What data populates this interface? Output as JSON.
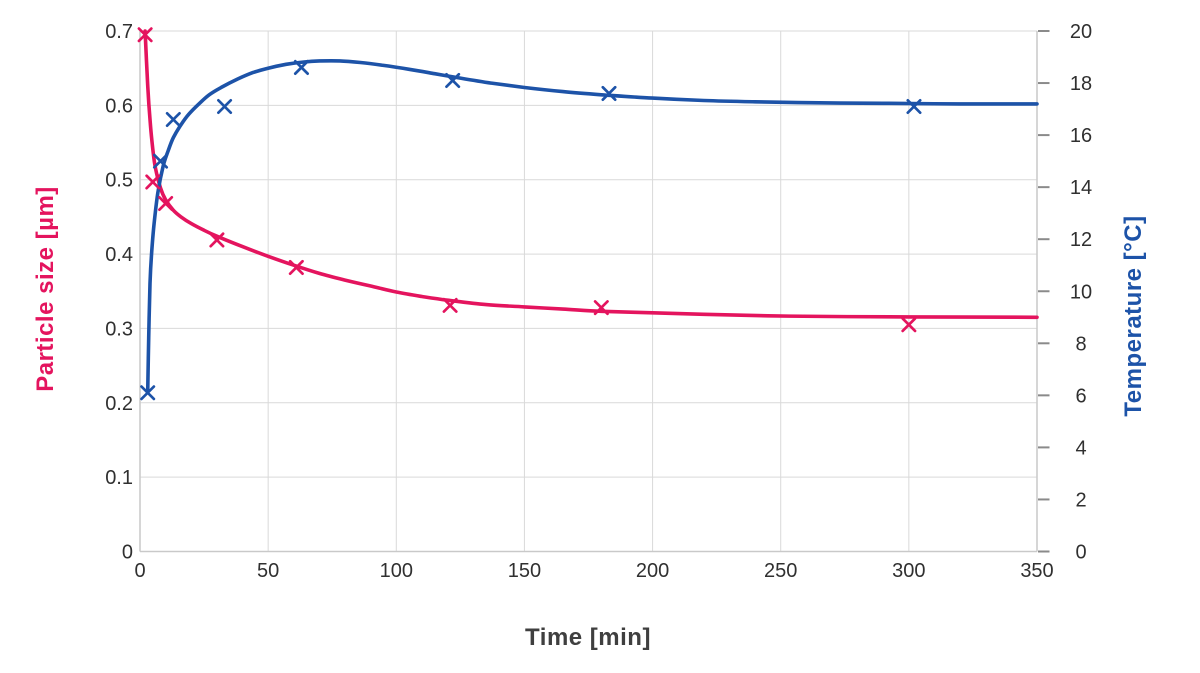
{
  "page": {
    "background": "#ffffff"
  },
  "chart_data": {
    "type": "line",
    "title": "",
    "xlabel": "Time [min]",
    "ylabel_left": "Particle size [µm]",
    "ylabel_right": "Temperature [°C]",
    "x_range": [
      0,
      350
    ],
    "x_tick_labels": [
      "0",
      "50",
      "100",
      "150",
      "200",
      "250",
      "300",
      "350"
    ],
    "x_tick_values": [
      0,
      50,
      100,
      150,
      200,
      250,
      300,
      350
    ],
    "y_left_range": [
      0,
      0.7
    ],
    "y_left_tick_labels": [
      "0.7",
      "0.6",
      "0.5",
      "0.4",
      "0.3",
      "0.2",
      "0.1",
      "0"
    ],
    "y_left_tick_values": [
      0.7,
      0.6,
      0.5,
      0.4,
      0.3,
      0.2,
      0.1,
      0
    ],
    "y_right_range": [
      0,
      20
    ],
    "y_right_tick_labels": [
      "20",
      "18",
      "16",
      "14",
      "12",
      "10",
      "8",
      "6",
      "4",
      "2",
      "0"
    ],
    "y_right_tick_values": [
      20,
      18,
      16,
      14,
      12,
      10,
      8,
      6,
      4,
      2,
      0
    ],
    "grid": true,
    "legend_position": "none",
    "colors": {
      "particle_size": "#E4145E",
      "temperature": "#1D53A8",
      "gridline": "#D9D9D9",
      "axis_line": "#C9C9C9",
      "tick_mark": "#8A8A8A",
      "tick_text": "#303030",
      "xlabel_text": "#3F3F3F"
    },
    "series": [
      {
        "name": "particle_size",
        "label": "Particle size [µm]",
        "axis": "left",
        "color": "#E4145E",
        "marker": "x",
        "points": [
          [
            2,
            0.695
          ],
          [
            5,
            0.497
          ],
          [
            10,
            0.468
          ],
          [
            30,
            0.419
          ],
          [
            61,
            0.382
          ],
          [
            121,
            0.331
          ],
          [
            180,
            0.328
          ],
          [
            300,
            0.305
          ]
        ],
        "trend": [
          [
            2,
            0.7
          ],
          [
            3,
            0.627
          ],
          [
            4,
            0.576
          ],
          [
            5,
            0.541
          ],
          [
            6,
            0.516
          ],
          [
            8,
            0.489
          ],
          [
            10,
            0.473
          ],
          [
            13,
            0.459
          ],
          [
            16,
            0.45
          ],
          [
            20,
            0.441
          ],
          [
            25,
            0.432
          ],
          [
            30,
            0.424
          ],
          [
            40,
            0.41
          ],
          [
            50,
            0.397
          ],
          [
            60,
            0.385
          ],
          [
            70,
            0.374
          ],
          [
            80,
            0.365
          ],
          [
            90,
            0.357
          ],
          [
            100,
            0.349
          ],
          [
            110,
            0.343
          ],
          [
            120,
            0.338
          ],
          [
            135,
            0.332
          ],
          [
            150,
            0.329
          ],
          [
            165,
            0.326
          ],
          [
            180,
            0.323
          ],
          [
            200,
            0.321
          ],
          [
            220,
            0.319
          ],
          [
            245,
            0.317
          ],
          [
            270,
            0.316
          ],
          [
            300,
            0.3155
          ],
          [
            350,
            0.315
          ]
        ]
      },
      {
        "name": "temperature",
        "label": "Temperature [°C]",
        "axis": "right",
        "color": "#1D53A8",
        "marker": "x",
        "points": [
          [
            3,
            6.1
          ],
          [
            8,
            15.0
          ],
          [
            13,
            16.6
          ],
          [
            33,
            17.1
          ],
          [
            63,
            18.6
          ],
          [
            122,
            18.1
          ],
          [
            183,
            17.6
          ],
          [
            302,
            17.1
          ]
        ],
        "trend": [
          [
            3,
            6.1
          ],
          [
            3.4,
            8.2
          ],
          [
            3.9,
            10.3
          ],
          [
            4.5,
            11.4
          ],
          [
            5.5,
            12.6
          ],
          [
            7,
            13.8
          ],
          [
            9,
            14.8
          ],
          [
            11,
            15.4
          ],
          [
            13,
            15.9
          ],
          [
            16,
            16.4
          ],
          [
            19,
            16.8
          ],
          [
            23,
            17.2
          ],
          [
            27,
            17.55
          ],
          [
            32,
            17.85
          ],
          [
            38,
            18.15
          ],
          [
            44,
            18.4
          ],
          [
            50,
            18.57
          ],
          [
            57,
            18.72
          ],
          [
            64,
            18.81
          ],
          [
            70,
            18.85
          ],
          [
            78,
            18.85
          ],
          [
            86,
            18.79
          ],
          [
            95,
            18.68
          ],
          [
            105,
            18.53
          ],
          [
            115,
            18.36
          ],
          [
            125,
            18.19
          ],
          [
            137,
            18.0
          ],
          [
            150,
            17.83
          ],
          [
            165,
            17.67
          ],
          [
            180,
            17.55
          ],
          [
            200,
            17.42
          ],
          [
            220,
            17.33
          ],
          [
            240,
            17.28
          ],
          [
            265,
            17.24
          ],
          [
            290,
            17.22
          ],
          [
            320,
            17.2
          ],
          [
            350,
            17.2
          ]
        ]
      }
    ]
  }
}
